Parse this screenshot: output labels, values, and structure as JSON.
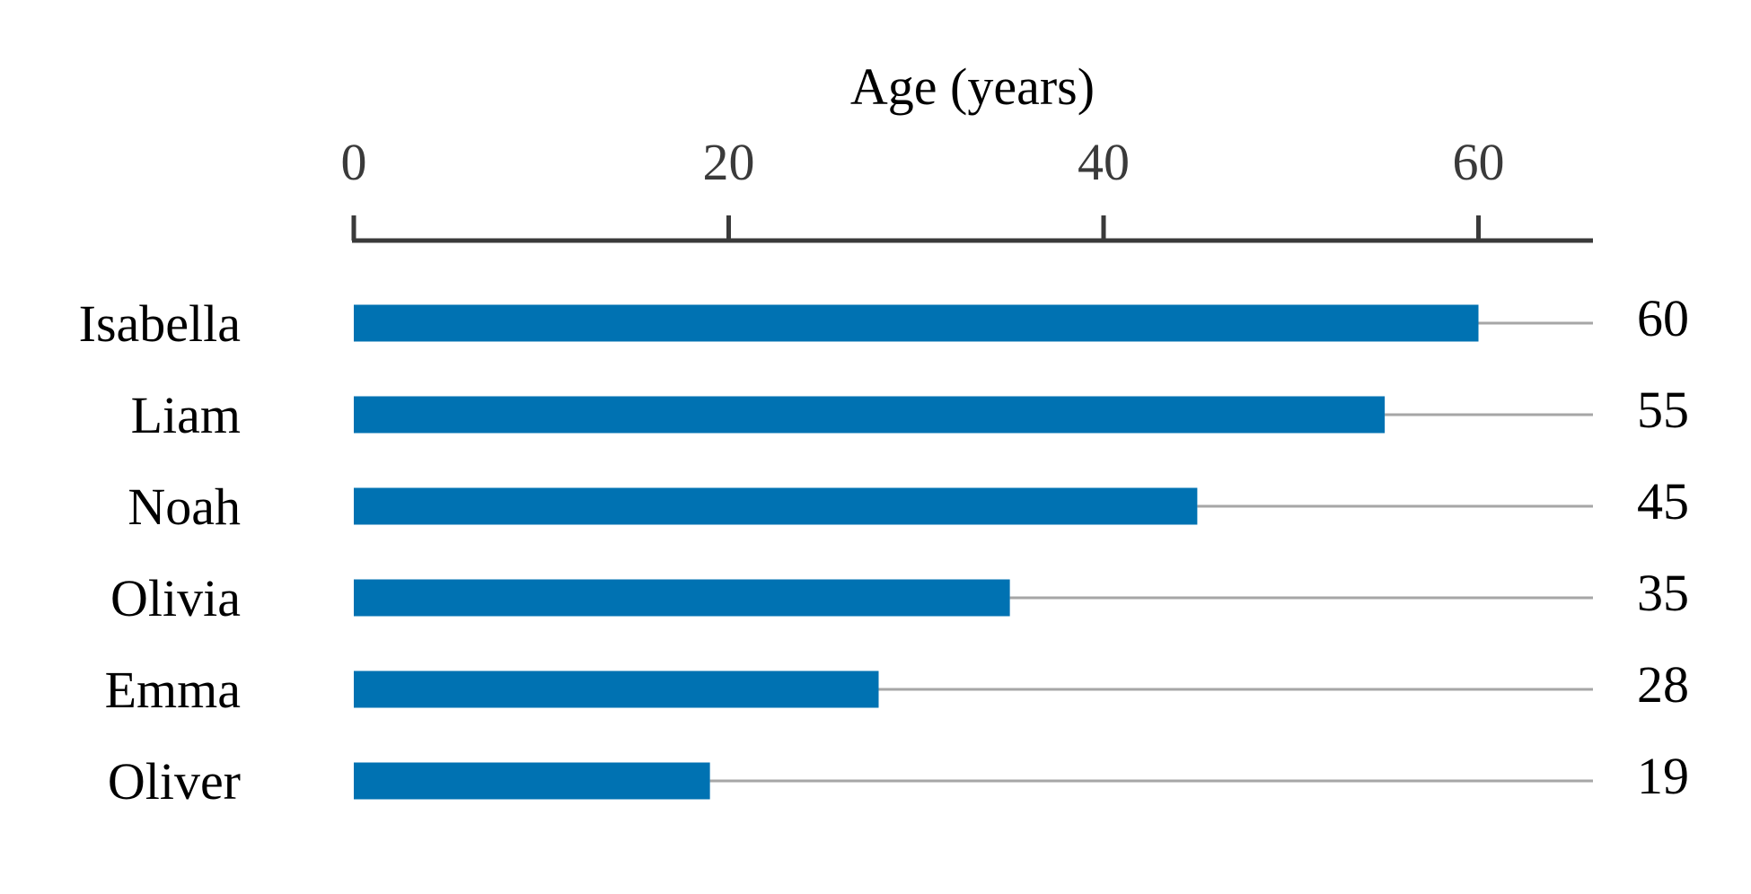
{
  "chart_data": {
    "type": "bar",
    "orientation": "horizontal",
    "xlabel": "Age (years)",
    "x_axis_position": "top",
    "xlim": [
      0,
      66
    ],
    "xticks": [
      0,
      20,
      40,
      60
    ],
    "categories": [
      "Isabella",
      "Liam",
      "Noah",
      "Olivia",
      "Emma",
      "Oliver"
    ],
    "values": [
      60,
      55,
      45,
      35,
      28,
      19
    ],
    "value_labels": [
      "60",
      "55",
      "45",
      "35",
      "28",
      "19"
    ],
    "grid": false,
    "legend": "none",
    "colors": {
      "bar": "#0072b2",
      "leader_line": "#a6a6a6",
      "axis": "#3a3a3a",
      "tick_label": "#3a3a3a",
      "text": "#000000"
    }
  }
}
